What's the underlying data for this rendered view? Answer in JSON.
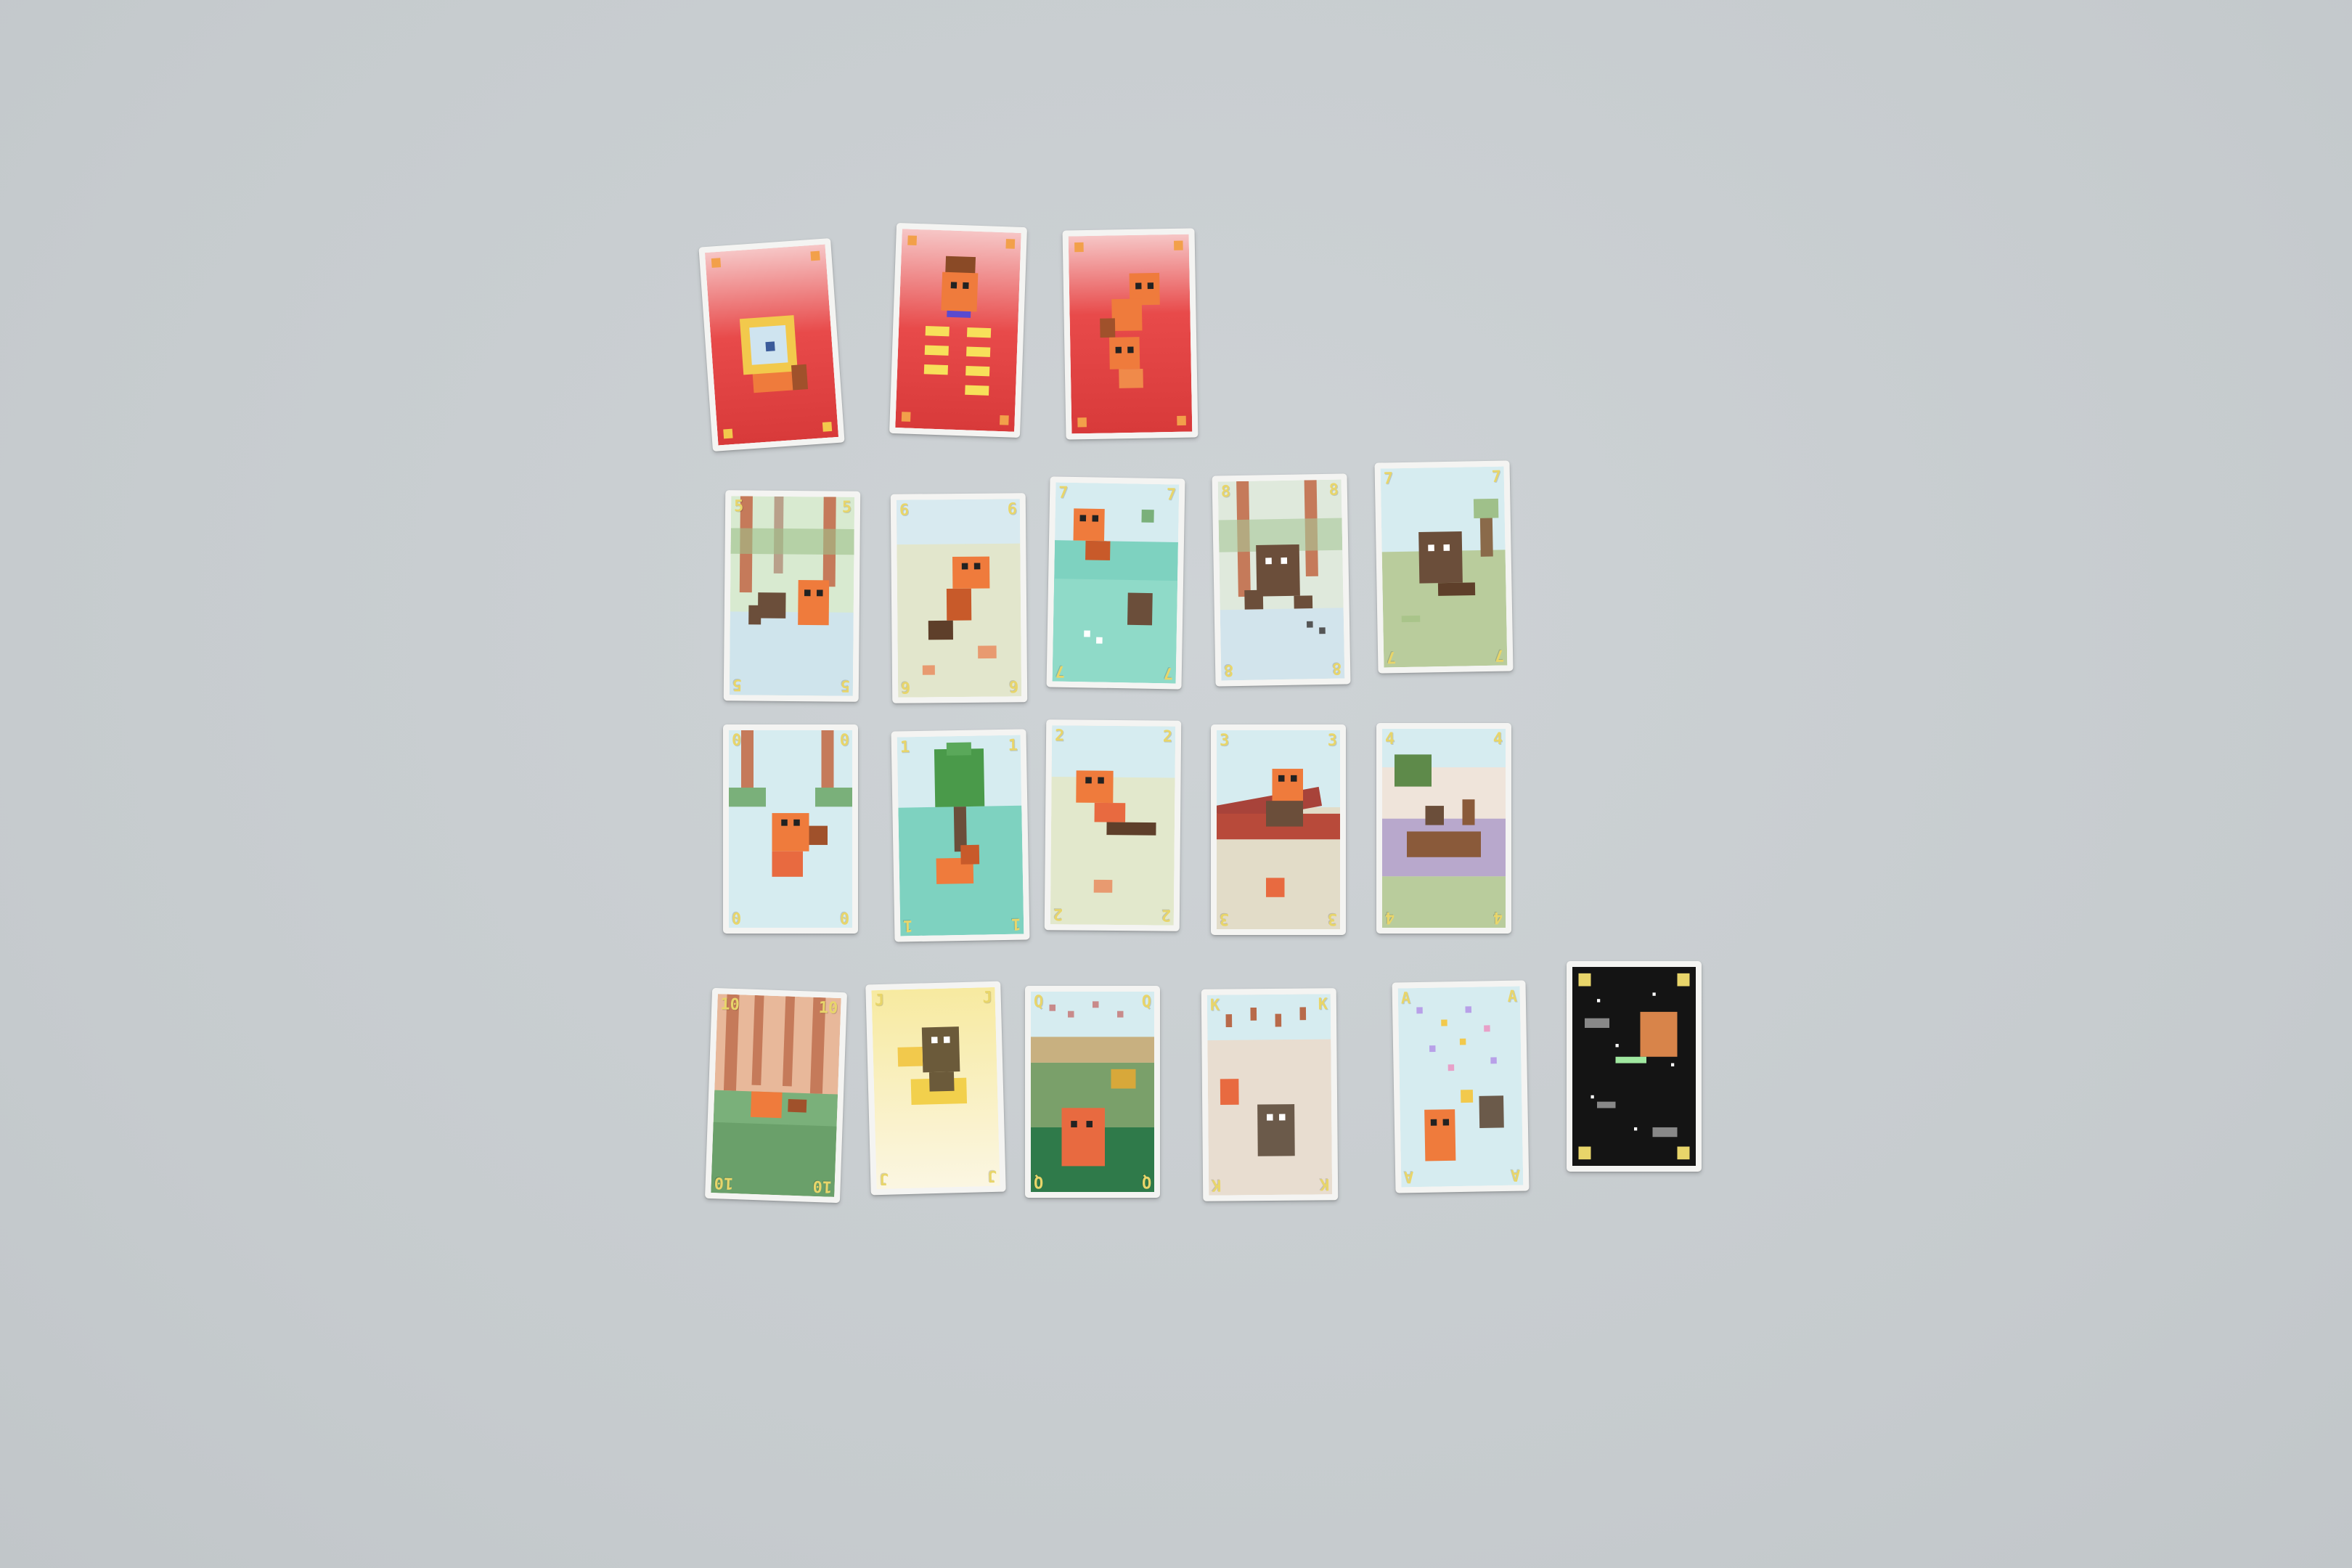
{
  "scene": {
    "background": "#c8cdd0"
  },
  "cards": [
    {
      "id": "special-1",
      "rank": "",
      "kind": "red",
      "theme": "coin-beaver"
    },
    {
      "id": "special-2",
      "rank": "",
      "kind": "red",
      "theme": "gold-stacks"
    },
    {
      "id": "special-3",
      "rank": "",
      "kind": "red",
      "theme": "beaver-pair"
    },
    {
      "id": "r2-1",
      "rank": "5",
      "kind": "forest",
      "theme": "beaver-with-rat"
    },
    {
      "id": "r2-2",
      "rank": "6",
      "kind": "meadow",
      "theme": "beaver-pushing"
    },
    {
      "id": "r2-3",
      "rank": "7",
      "kind": "water",
      "theme": "diving-beaver"
    },
    {
      "id": "r2-4",
      "rank": "8",
      "kind": "forest",
      "theme": "rat-dance"
    },
    {
      "id": "r2-5",
      "rank": "7",
      "kind": "meadow",
      "theme": "rat-sitting"
    },
    {
      "id": "r3-1",
      "rank": "0",
      "kind": "forest",
      "theme": "beaver-jump"
    },
    {
      "id": "r3-2",
      "rank": "1",
      "kind": "water",
      "theme": "tree-island"
    },
    {
      "id": "r3-3",
      "rank": "2",
      "kind": "meadow",
      "theme": "beaver-flying"
    },
    {
      "id": "r3-4",
      "rank": "3",
      "kind": "river",
      "theme": "log-ride"
    },
    {
      "id": "r3-5",
      "rank": "4",
      "kind": "swamp",
      "theme": "dam-building"
    },
    {
      "id": "r4-1",
      "rank": "10",
      "kind": "forest",
      "theme": "forest-floor"
    },
    {
      "id": "r4-2",
      "rank": "J",
      "kind": "gold",
      "theme": "rat-with-gold"
    },
    {
      "id": "r4-3",
      "rank": "Q",
      "kind": "dusk",
      "theme": "rain-beaver"
    },
    {
      "id": "r4-4",
      "rank": "K",
      "kind": "meadow",
      "theme": "beaver-king"
    },
    {
      "id": "r4-5",
      "rank": "A",
      "kind": "sky",
      "theme": "confetti"
    },
    {
      "id": "joker",
      "rank": "",
      "kind": "space",
      "theme": "space-beaver"
    }
  ]
}
